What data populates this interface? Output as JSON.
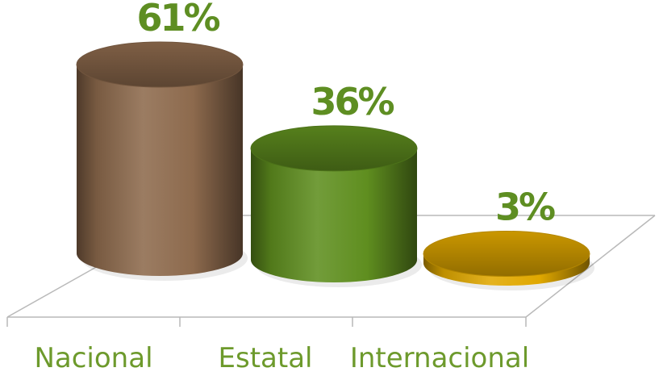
{
  "chart_data": {
    "type": "bar",
    "style": "3d-cylinder",
    "categories": [
      "Nacional",
      "Estatal",
      "Internacional"
    ],
    "values": [
      61,
      36,
      3
    ],
    "value_labels": [
      "61%",
      "36%",
      "3%"
    ],
    "unit": "%",
    "title": "",
    "xlabel": "",
    "ylabel": "",
    "ylim": [
      0,
      61
    ],
    "grid": false,
    "legend": "none",
    "colors": {
      "bars": [
        "#8d6a4d",
        "#5f8e1f",
        "#e0a800"
      ],
      "data_labels": "#5e8e22",
      "category_labels": "#6d9a2c",
      "floor_lines": "#b9b9b9"
    }
  }
}
